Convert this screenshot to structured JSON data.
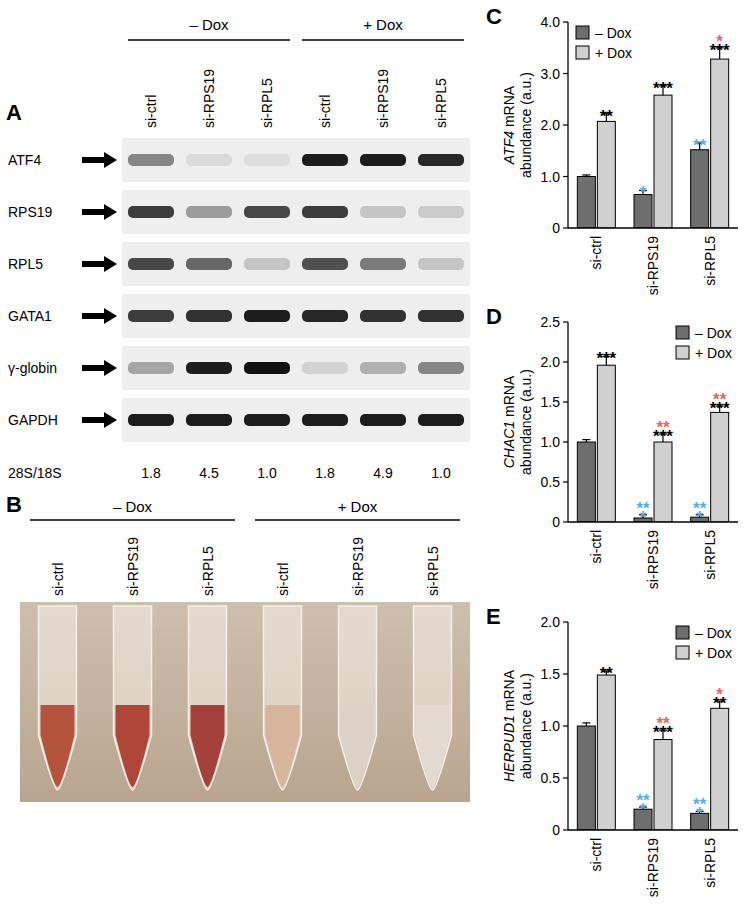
{
  "blot": {
    "panel": "A",
    "groups": [
      "– Dox",
      "+ Dox"
    ],
    "lanes": [
      "si-ctrl",
      "si-RPS19",
      "si-RPL5",
      "si-ctrl",
      "si-RPS19",
      "si-RPL5"
    ],
    "rows": [
      {
        "label": "ATF4",
        "intensity": [
          0.45,
          0.05,
          0.03,
          0.95,
          0.95,
          0.9
        ]
      },
      {
        "label": "RPS19",
        "intensity": [
          0.8,
          0.35,
          0.75,
          0.8,
          0.15,
          0.12
        ]
      },
      {
        "label": "RPL5",
        "intensity": [
          0.75,
          0.6,
          0.15,
          0.7,
          0.5,
          0.15
        ]
      },
      {
        "label": "GATA1",
        "intensity": [
          0.8,
          0.85,
          0.95,
          0.9,
          0.85,
          0.85
        ]
      },
      {
        "label": "γ-globin",
        "intensity": [
          0.3,
          0.95,
          1.0,
          0.08,
          0.25,
          0.45
        ]
      },
      {
        "label": "GAPDH",
        "intensity": [
          0.95,
          0.95,
          0.95,
          0.95,
          0.95,
          0.95
        ]
      }
    ],
    "ratio": {
      "label": "28S/18S",
      "values": [
        "1.8",
        "4.5",
        "1.0",
        "1.8",
        "4.9",
        "1.0"
      ]
    }
  },
  "photo": {
    "panel": "B",
    "groups": [
      "– Dox",
      "+ Dox"
    ],
    "lanes": [
      "si-ctrl",
      "si-RPS19",
      "si-RPL5",
      "si-ctrl",
      "si-RPS19",
      "si-RPL5"
    ],
    "colors": [
      "#b5533f",
      "#b0463a",
      "#a3413a",
      "#d6b59c",
      "#ddd2c6",
      "#e3dbd2"
    ]
  },
  "chart_data": [
    {
      "type": "bar",
      "panel": "C",
      "y_label": "ATF4 mRNA abundance (a.u.)",
      "categories": [
        "si-ctrl",
        "si-RPS19",
        "si-RPL5"
      ],
      "ylim": [
        0,
        4
      ],
      "yticks": [
        0,
        {
          "value": 1,
          "label": "1.0"
        },
        {
          "value": 2,
          "label": "2.0"
        },
        {
          "value": 3,
          "label": "3.0"
        },
        {
          "value": 4,
          "label": "4.0"
        }
      ],
      "legend": "upper left",
      "series": [
        {
          "name": "– Dox",
          "color": "#6e6e6e",
          "values": [
            1.0,
            0.65,
            1.52
          ],
          "errors": [
            0.03,
            0.08,
            0.13
          ],
          "significance": [
            [],
            [
              {
                "text": "*",
                "color": "#5aaee6"
              }
            ],
            [
              {
                "text": "**",
                "color": "#5aaee6"
              }
            ]
          ]
        },
        {
          "name": "+ Dox",
          "color": "#d0d0d0",
          "values": [
            2.07,
            2.58,
            3.28
          ],
          "errors": [
            0.15,
            0.18,
            0.22
          ],
          "significance": [
            [
              {
                "text": "**",
                "color": "#000000"
              }
            ],
            [
              {
                "text": "***",
                "color": "#000000"
              }
            ],
            [
              {
                "text": "***",
                "color": "#000000"
              },
              {
                "text": "*",
                "color": "#f0605d"
              }
            ]
          ]
        }
      ]
    },
    {
      "type": "bar",
      "panel": "D",
      "y_label": "CHAC1 mRNA abundance (a.u.)",
      "categories": [
        "si-ctrl",
        "si-RPS19",
        "si-RPL5"
      ],
      "ylim": [
        0,
        2.5
      ],
      "yticks": [
        0,
        0.5,
        {
          "value": 1,
          "label": "1.0"
        },
        1.5,
        {
          "value": 2,
          "label": "2.0"
        },
        2.5
      ],
      "legend": "upper right",
      "series": [
        {
          "name": "– Dox",
          "color": "#6e6e6e",
          "values": [
            1.0,
            0.05,
            0.06
          ],
          "errors": [
            0.03,
            0.04,
            0.03
          ],
          "significance": [
            [],
            [
              {
                "text": "*",
                "color": "#5aaee6"
              },
              {
                "text": "**",
                "color": "#5aaee6"
              }
            ],
            [
              {
                "text": "*",
                "color": "#5aaee6"
              },
              {
                "text": "**",
                "color": "#5aaee6"
              }
            ]
          ]
        },
        {
          "name": "+ Dox",
          "color": "#d0d0d0",
          "values": [
            1.96,
            1.0,
            1.37
          ],
          "errors": [
            0.11,
            0.1,
            0.08
          ],
          "significance": [
            [
              {
                "text": "***",
                "color": "#000000"
              }
            ],
            [
              {
                "text": "***",
                "color": "#000000"
              },
              {
                "text": "**",
                "color": "#f0605d"
              }
            ],
            [
              {
                "text": "***",
                "color": "#000000"
              },
              {
                "text": "**",
                "color": "#f0605d"
              }
            ]
          ]
        }
      ]
    },
    {
      "type": "bar",
      "panel": "E",
      "y_label": "HERPUD1 mRNA abundance (a.u.)",
      "categories": [
        "si-ctrl",
        "si-RPS19",
        "si-RPL5"
      ],
      "ylim": [
        0,
        2
      ],
      "yticks": [
        0,
        0.5,
        {
          "value": 1,
          "label": "1.0"
        },
        1.5,
        {
          "value": 2,
          "label": "2.0"
        }
      ],
      "legend": "upper right",
      "series": [
        {
          "name": "– Dox",
          "color": "#6e6e6e",
          "values": [
            1.0,
            0.2,
            0.16
          ],
          "errors": [
            0.03,
            0.02,
            0.02
          ],
          "significance": [
            [],
            [
              {
                "text": "*",
                "color": "#5aaee6"
              },
              {
                "text": "**",
                "color": "#5aaee6"
              }
            ],
            [
              {
                "text": "*",
                "color": "#5aaee6"
              },
              {
                "text": "**",
                "color": "#5aaee6"
              }
            ]
          ]
        },
        {
          "name": "+ Dox",
          "color": "#d0d0d0",
          "values": [
            1.49,
            0.87,
            1.17
          ],
          "errors": [
            0.04,
            0.09,
            0.07
          ],
          "significance": [
            [
              {
                "text": "**",
                "color": "#000000"
              }
            ],
            [
              {
                "text": "***",
                "color": "#000000"
              },
              {
                "text": "**",
                "color": "#f0605d"
              }
            ],
            [
              {
                "text": "**",
                "color": "#000000"
              },
              {
                "text": "*",
                "color": "#f0605d"
              }
            ]
          ]
        }
      ]
    }
  ]
}
